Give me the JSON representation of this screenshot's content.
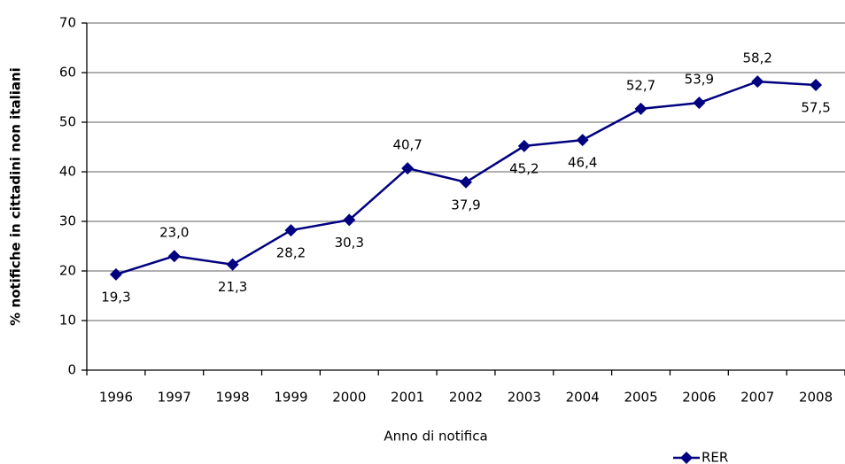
{
  "chart_data": {
    "type": "line",
    "x_label": "Anno di notifica",
    "y_label": "% notifiche in cittadini non italiani",
    "categories": [
      "1996",
      "1997",
      "1998",
      "1999",
      "2000",
      "2001",
      "2002",
      "2003",
      "2004",
      "2005",
      "2006",
      "2007",
      "2008"
    ],
    "series": [
      {
        "name": "RER",
        "color": "#000080",
        "values": [
          19.3,
          23.0,
          21.3,
          28.2,
          30.3,
          40.7,
          37.9,
          45.2,
          46.4,
          52.7,
          53.9,
          58.2,
          57.5
        ],
        "value_labels": [
          "19,3",
          "23,0",
          "21,3",
          "28,2",
          "30,3",
          "40,7",
          "37,9",
          "45,2",
          "46,4",
          "52,7",
          "53,9",
          "58,2",
          "57,5"
        ]
      }
    ],
    "ylim": [
      0,
      70
    ],
    "yticks": [
      0,
      10,
      20,
      30,
      40,
      50,
      60,
      70
    ],
    "grid": true,
    "legend": "bottom-right"
  }
}
